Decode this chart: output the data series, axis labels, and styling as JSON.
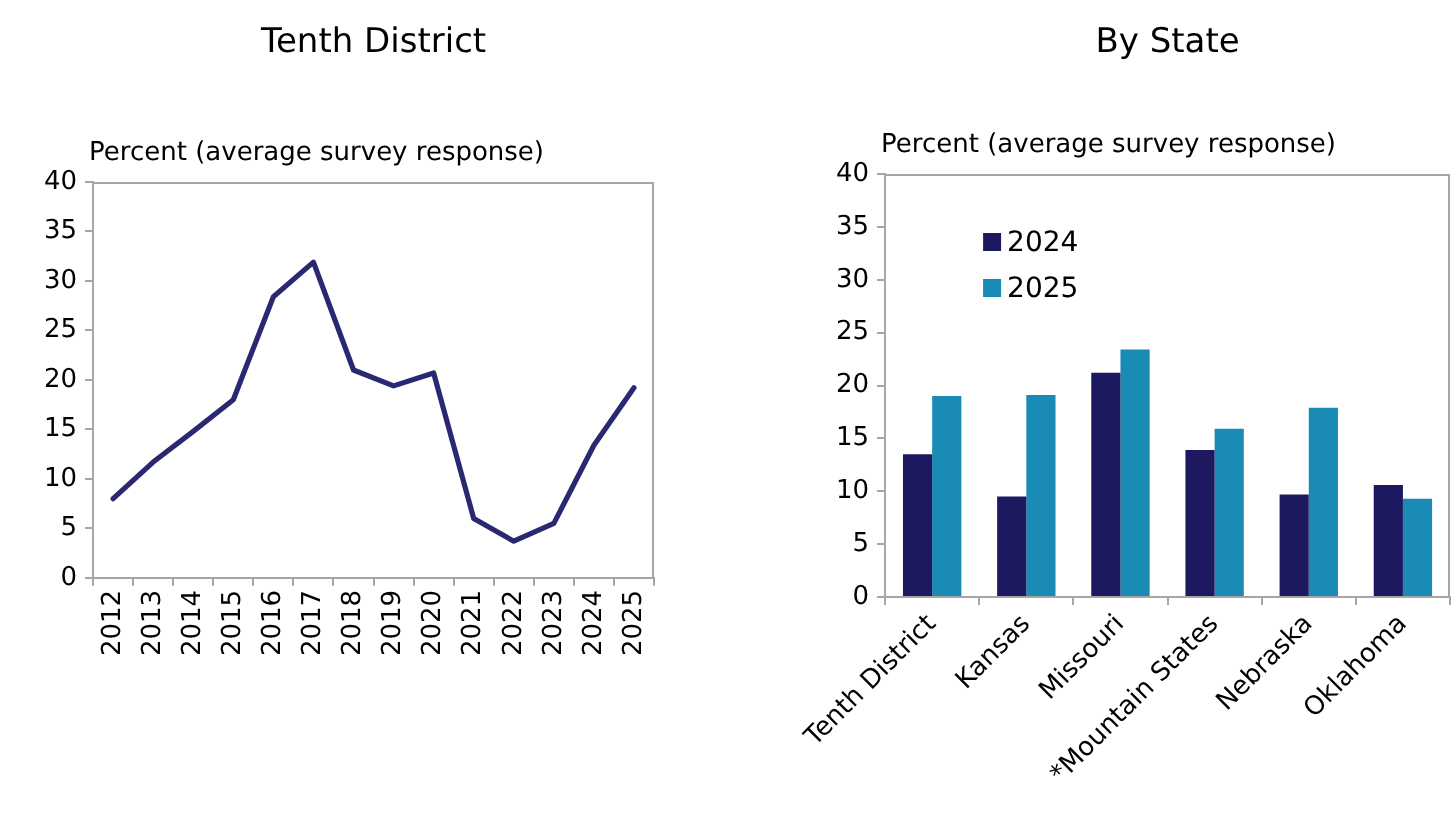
{
  "chart_data": [
    {
      "type": "line",
      "title": "Tenth District",
      "ylabel": "Percent (average survey response)",
      "categories": [
        "2012",
        "2013",
        "2014",
        "2015",
        "2016",
        "2017",
        "2018",
        "2019",
        "2020",
        "2021",
        "2022",
        "2023",
        "2024",
        "2025"
      ],
      "series": [
        {
          "color": "#2b2872",
          "values": [
            8.0,
            11.7,
            14.8,
            18.0,
            28.4,
            31.9,
            21.0,
            19.4,
            20.7,
            6.0,
            3.7,
            5.5,
            13.4,
            19.2
          ]
        }
      ],
      "ylim": [
        0,
        40
      ],
      "yticks": [
        0,
        5,
        10,
        15,
        20,
        25,
        30,
        35,
        40
      ],
      "grid": false,
      "marker": "none",
      "line_style": "solid"
    },
    {
      "type": "bar",
      "title": "By State",
      "ylabel": "Percent (average survey response)",
      "categories": [
        "Tenth District",
        "Kansas",
        "Missouri",
        "*Mountain States",
        "Nebraska",
        "Oklahoma"
      ],
      "series": [
        {
          "name": "2024",
          "color": "#1d1960",
          "values": [
            13.5,
            9.5,
            21.2,
            13.9,
            9.7,
            10.6
          ]
        },
        {
          "name": "2025",
          "color": "#1a8bb5",
          "values": [
            19.0,
            19.1,
            23.4,
            15.9,
            17.9,
            9.3
          ]
        }
      ],
      "ylim": [
        0,
        40
      ],
      "yticks": [
        0,
        5,
        10,
        15,
        20,
        25,
        30,
        35,
        40
      ],
      "grid": false,
      "legend": "top left"
    }
  ]
}
